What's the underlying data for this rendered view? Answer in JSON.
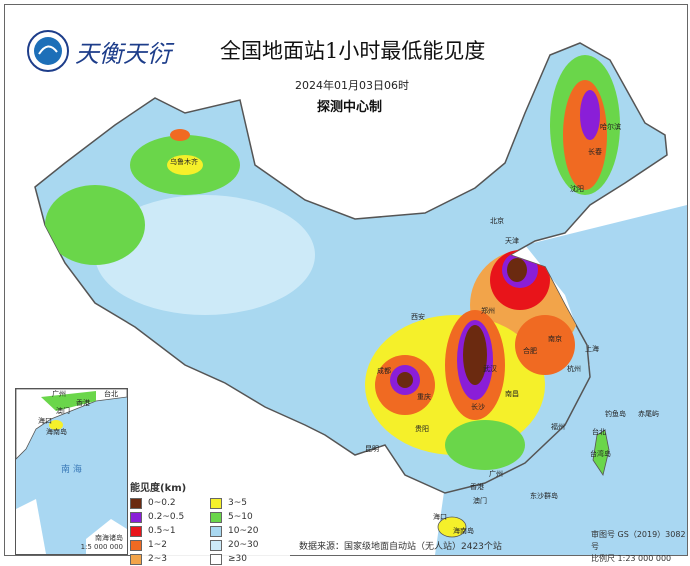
{
  "logo": {
    "text": "天衡天衍"
  },
  "header": {
    "title": "全国地面站1小时最低能见度",
    "datetime": "2024年01月03日06时",
    "issuer": "探测中心制"
  },
  "legend": {
    "title": "能见度(km)",
    "items": [
      {
        "label": "0~0.2",
        "color": "#6b2a10"
      },
      {
        "label": "0.2~0.5",
        "color": "#8a1ed8"
      },
      {
        "label": "0.5~1",
        "color": "#e8141a"
      },
      {
        "label": "1~2",
        "color": "#f06a22"
      },
      {
        "label": "2~3",
        "color": "#f2a44a"
      },
      {
        "label": "3~5",
        "color": "#f5f02a"
      },
      {
        "label": "5~10",
        "color": "#6ad64a"
      },
      {
        "label": "10~20",
        "color": "#a9d8f0"
      },
      {
        "label": "20~30",
        "color": "#cdeaf8"
      },
      {
        "label": "≥30",
        "color": "#ffffff"
      }
    ]
  },
  "footer": {
    "source": "数据来源：国家级地面自动站（无人站）2423个站",
    "approval": "审图号 GS（2019）3082号",
    "scale": "比例尺 1:23 000 000"
  },
  "inset": {
    "title": "南海诸岛",
    "scale": "1:5 000 000",
    "sea": "南 海",
    "labels": [
      "广州",
      "香港",
      "澳门",
      "海口",
      "海南岛",
      "台北"
    ]
  },
  "cities": [
    {
      "name": "乌鲁木齐"
    },
    {
      "name": "哈尔滨"
    },
    {
      "name": "长春"
    },
    {
      "name": "沈阳"
    },
    {
      "name": "北京"
    },
    {
      "name": "天津"
    },
    {
      "name": "西安"
    },
    {
      "name": "郑州"
    },
    {
      "name": "南京"
    },
    {
      "name": "上海"
    },
    {
      "name": "合肥"
    },
    {
      "name": "杭州"
    },
    {
      "name": "武汉"
    },
    {
      "name": "南昌"
    },
    {
      "name": "长沙"
    },
    {
      "name": "福州"
    },
    {
      "name": "台北"
    },
    {
      "name": "台湾岛"
    },
    {
      "name": "钓鱼岛"
    },
    {
      "name": "赤尾屿"
    },
    {
      "name": "广州"
    },
    {
      "name": "香港"
    },
    {
      "name": "澳门"
    },
    {
      "name": "海口"
    },
    {
      "name": "海南岛"
    },
    {
      "name": "东沙群岛"
    },
    {
      "name": "成都"
    },
    {
      "name": "重庆"
    },
    {
      "name": "贵阳"
    },
    {
      "name": "昆明"
    }
  ],
  "seas": [
    "南 海"
  ]
}
